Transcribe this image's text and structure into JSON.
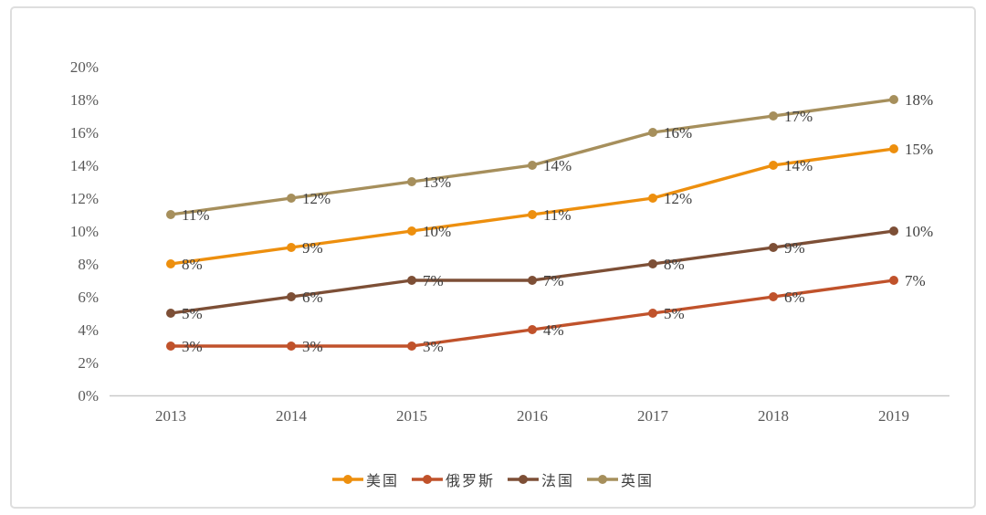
{
  "page": {
    "background": "#ffffff",
    "frame_border_color": "#DEDEDE"
  },
  "chart_data": {
    "type": "line",
    "title": "",
    "xlabel": "",
    "ylabel": "",
    "categories": [
      "2013",
      "2014",
      "2015",
      "2016",
      "2017",
      "2018",
      "2019"
    ],
    "series": [
      {
        "name": "美国",
        "color": "#ED8F0E",
        "values": [
          8,
          9,
          10,
          11,
          12,
          14,
          15
        ],
        "labels": [
          "8%",
          "9%",
          "10%",
          "11%",
          "12%",
          "14%",
          "15%"
        ]
      },
      {
        "name": "俄罗斯",
        "color": "#C0522B",
        "values": [
          3,
          3,
          3,
          4,
          5,
          6,
          7
        ],
        "labels": [
          "3%",
          "3%",
          "3%",
          "4%",
          "5%",
          "6%",
          "7%"
        ]
      },
      {
        "name": "法国",
        "color": "#7D4F36",
        "values": [
          5,
          6,
          7,
          7,
          8,
          9,
          10
        ],
        "labels": [
          "5%",
          "6%",
          "7%",
          "7%",
          "8%",
          "9%",
          "10%"
        ]
      },
      {
        "name": "英国",
        "color": "#A68F5C",
        "values": [
          11,
          12,
          13,
          14,
          16,
          17,
          18
        ],
        "labels": [
          "11%",
          "12%",
          "13%",
          "14%",
          "16%",
          "17%",
          "18%"
        ]
      }
    ],
    "ylim": [
      0,
      20
    ],
    "ytick_step": 2,
    "ytick_labels": [
      "0%",
      "2%",
      "4%",
      "6%",
      "8%",
      "10%",
      "12%",
      "14%",
      "16%",
      "18%",
      "20%"
    ],
    "grid": false,
    "legend_position": "bottom",
    "data_labels_shown": true,
    "axis_line_color": "#C9C9C9",
    "tick_label_color": "#595959",
    "data_label_color": "#3F3F3F"
  }
}
